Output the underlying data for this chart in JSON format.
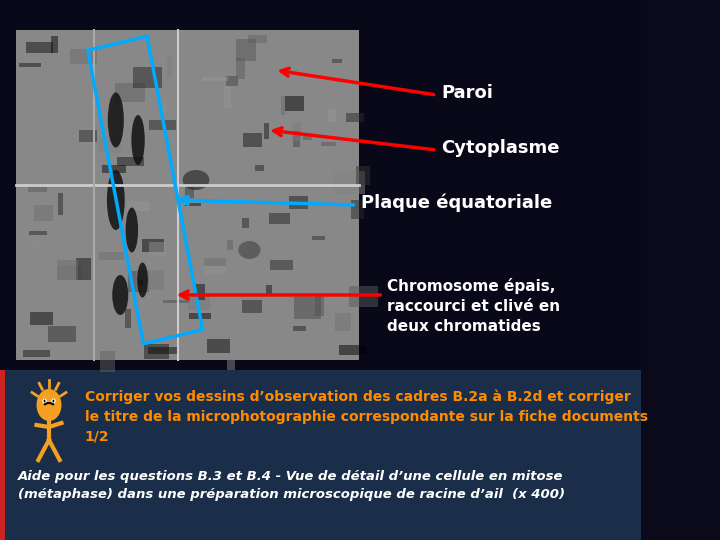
{
  "bg_color": "#0a0a1a",
  "bg_color_bottom": "#1a2a4a",
  "title_area_color": "#000000",
  "image_placeholder": true,
  "labels": {
    "paroi": "Paroi",
    "cytoplasme": "Cytoplasme",
    "plaque": "Plaque équatoriale",
    "chromosome": "Chromosome épais,\nraccourci et clivé en\ndeux chromatides"
  },
  "corriger_text": "Corriger vos dessins d’observation des cadres B.2a à B.2d et corriger\nle titre de la microphotographie correspondante sur la fiche documents\n1/2",
  "aide_text": "Aide pour les questions B.3 et B.4 - Vue de détail d’une cellule en mitose\n(métaphase) dans une préparation microscopique de racine d’ail  (x 400)",
  "red_arrow_color": "#ff0000",
  "blue_arrow_color": "#00aaff",
  "blue_rect_color": "#00aaff",
  "text_color_white": "#ffffff",
  "text_color_orange": "#ffa500",
  "bottom_band_color": "#1e3a5a"
}
